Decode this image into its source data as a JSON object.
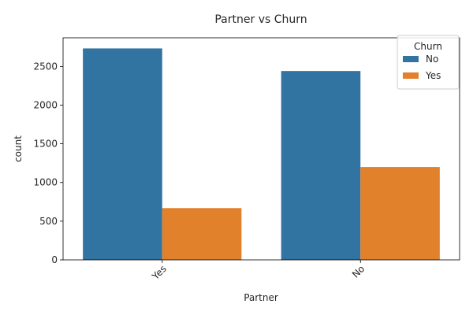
{
  "chart_data": {
    "type": "bar",
    "title": "Partner vs Churn",
    "xlabel": "Partner",
    "ylabel": "count",
    "categories": [
      "Yes",
      "No"
    ],
    "series": [
      {
        "name": "No",
        "values": [
          2733,
          2441
        ],
        "color": "#3274a1"
      },
      {
        "name": "Yes",
        "values": [
          669,
          1200
        ],
        "color": "#e1812c"
      }
    ],
    "ylim": [
      0,
      2870
    ],
    "yticks": [
      0,
      500,
      1000,
      1500,
      2000,
      2500
    ],
    "legend": {
      "title": "Churn",
      "placement": "top-right"
    },
    "grid": false
  }
}
